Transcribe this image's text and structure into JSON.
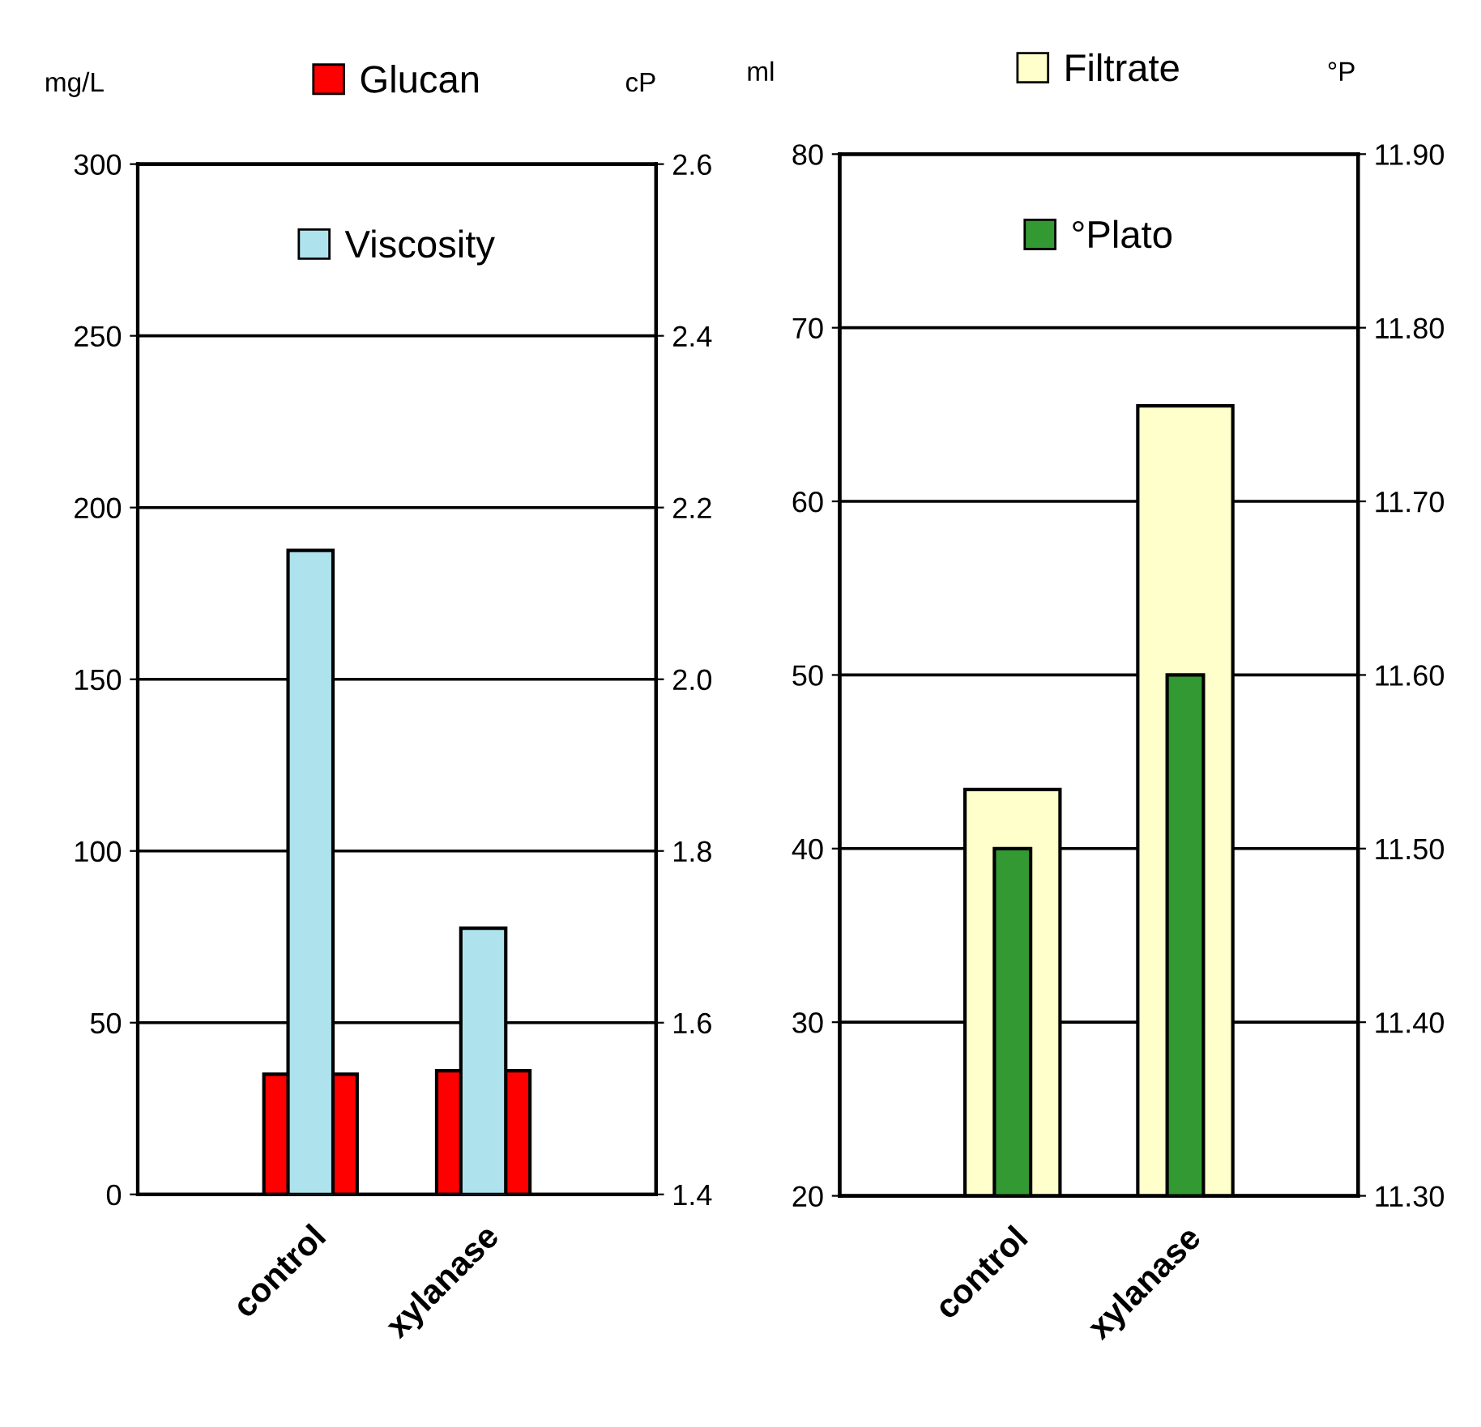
{
  "chart_data": [
    {
      "type": "bar",
      "categories": [
        "control",
        "xylanase"
      ],
      "ylabel": "mg/L",
      "y2label": "cP",
      "series": [
        {
          "name": "Glucan",
          "color": "#ff0000",
          "values": [
            35,
            36
          ]
        },
        {
          "name": "Viscosity",
          "color": "#aee3ee",
          "values": [
            2.15,
            1.71
          ],
          "axis": "y2"
        }
      ],
      "ylim": [
        0,
        300
      ],
      "yticks": [
        0,
        50,
        100,
        150,
        200,
        250,
        300
      ],
      "y2lim": [
        1.4,
        2.6
      ],
      "y2ticks": [
        1.4,
        1.6,
        1.8,
        {
          "value": 2.0,
          "label": "2.0"
        },
        2.2,
        2.4,
        2.6
      ],
      "grid": "y",
      "legend": "top"
    },
    {
      "type": "bar",
      "categories": [
        "control",
        "xylanase"
      ],
      "ylabel": "ml",
      "y2label": "°P",
      "series": [
        {
          "name": "Filtrate",
          "color": "#ffffcc",
          "values": [
            43.4,
            65.5
          ]
        },
        {
          "name": "°Plato",
          "color": "#339933",
          "values": [
            11.5,
            11.6
          ],
          "axis": "y2"
        }
      ],
      "ylim": [
        20,
        80
      ],
      "yticks": [
        20,
        30,
        40,
        50,
        60,
        70,
        80
      ],
      "y2lim": [
        11.3,
        11.9
      ],
      "y2ticks": [
        {
          "value": 11.3,
          "label": "11.30"
        },
        {
          "value": 11.4,
          "label": "11.40"
        },
        {
          "value": 11.5,
          "label": "11.50"
        },
        {
          "value": 11.6,
          "label": "11.60"
        },
        {
          "value": 11.7,
          "label": "11.70"
        },
        {
          "value": 11.8,
          "label": "11.80"
        },
        {
          "value": 11.9,
          "label": "11.90"
        }
      ],
      "grid": "y",
      "legend": "top"
    }
  ]
}
